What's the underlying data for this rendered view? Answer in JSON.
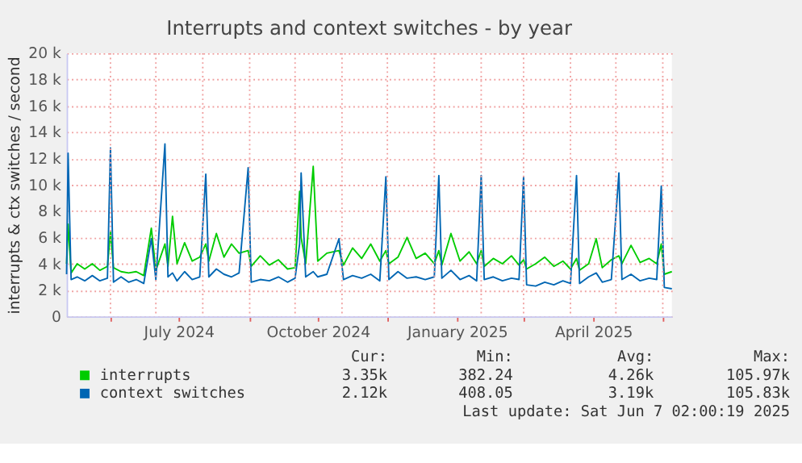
{
  "chart_data": {
    "type": "line",
    "title": "Interrupts and context switches - by year",
    "ylabel": "interrupts & ctx switches / second",
    "x": [
      "2024-05-03",
      "2024-05-04",
      "2024-05-06",
      "2024-05-10",
      "2024-05-15",
      "2024-05-20",
      "2024-05-25",
      "2024-05-30",
      "2024-06-01",
      "2024-06-03",
      "2024-06-08",
      "2024-06-13",
      "2024-06-18",
      "2024-06-23",
      "2024-06-28",
      "2024-07-01",
      "2024-07-07",
      "2024-07-09",
      "2024-07-12",
      "2024-07-15",
      "2024-07-20",
      "2024-07-25",
      "2024-07-30",
      "2024-08-03",
      "2024-08-05",
      "2024-08-10",
      "2024-08-15",
      "2024-08-20",
      "2024-08-25",
      "2024-08-31",
      "2024-09-02",
      "2024-09-08",
      "2024-09-14",
      "2024-09-20",
      "2024-09-26",
      "2024-10-01",
      "2024-10-04",
      "2024-10-05",
      "2024-10-08",
      "2024-10-13",
      "2024-10-16",
      "2024-10-22",
      "2024-10-30",
      "2024-11-02",
      "2024-11-08",
      "2024-11-14",
      "2024-11-20",
      "2024-11-26",
      "2024-11-30",
      "2024-12-02",
      "2024-12-08",
      "2024-12-14",
      "2024-12-20",
      "2024-12-26",
      "2025-01-01",
      "2025-01-04",
      "2025-01-06",
      "2025-01-12",
      "2025-01-18",
      "2025-01-24",
      "2025-01-29",
      "2025-02-01",
      "2025-02-03",
      "2025-02-09",
      "2025-02-15",
      "2025-02-21",
      "2025-02-26",
      "2025-03-01",
      "2025-03-03",
      "2025-03-09",
      "2025-03-15",
      "2025-03-21",
      "2025-03-27",
      "2025-04-01",
      "2025-04-05",
      "2025-04-07",
      "2025-04-13",
      "2025-04-18",
      "2025-04-22",
      "2025-04-28",
      "2025-05-03",
      "2025-05-05",
      "2025-05-11",
      "2025-05-17",
      "2025-05-23",
      "2025-05-28",
      "2025-05-31",
      "2025-06-02",
      "2025-06-07"
    ],
    "series": [
      {
        "name": "interrupts",
        "color": "#00cc00",
        "values": [
          4000,
          7000,
          3300,
          4000,
          3600,
          4000,
          3500,
          3800,
          6400,
          3700,
          3400,
          3300,
          3400,
          3100,
          6700,
          3500,
          5500,
          3800,
          7600,
          4000,
          5600,
          4200,
          4500,
          5500,
          4200,
          6300,
          4500,
          5500,
          4800,
          5000,
          3800,
          4600,
          3900,
          4300,
          3600,
          3700,
          9500,
          6000,
          4000,
          11400,
          4200,
          4800,
          5000,
          3900,
          5200,
          4400,
          5500,
          4200,
          5000,
          4000,
          4500,
          6000,
          4400,
          4800,
          4000,
          5000,
          3900,
          6300,
          4200,
          4900,
          4000,
          5000,
          3800,
          4400,
          4000,
          4600,
          3900,
          4300,
          3600,
          4000,
          4500,
          3800,
          4200,
          3600,
          4400,
          3500,
          4000,
          5900,
          3700,
          4300,
          4600,
          4000,
          5400,
          4100,
          4400,
          4000,
          5500,
          3200,
          3400
        ]
      },
      {
        "name": "context switches",
        "color": "#0066b3",
        "values": [
          3200,
          12400,
          2800,
          3000,
          2700,
          3100,
          2700,
          2900,
          12800,
          2600,
          3000,
          2600,
          2800,
          2500,
          5900,
          2800,
          13100,
          3000,
          3300,
          2700,
          3400,
          2800,
          3000,
          10800,
          3000,
          3600,
          3200,
          3000,
          3300,
          11300,
          2600,
          2800,
          2700,
          3000,
          2600,
          2900,
          5500,
          10900,
          3000,
          3400,
          3000,
          3200,
          5900,
          2800,
          3100,
          2900,
          3200,
          2700,
          10600,
          2800,
          3400,
          2900,
          3000,
          2800,
          3000,
          10700,
          2900,
          3500,
          2800,
          3100,
          2700,
          10700,
          2800,
          3000,
          2700,
          2900,
          2800,
          10600,
          2400,
          2300,
          2600,
          2400,
          2700,
          2500,
          10700,
          2500,
          3000,
          3300,
          2600,
          2800,
          10900,
          2800,
          3200,
          2700,
          2900,
          2800,
          9900,
          2200,
          2100
        ]
      }
    ],
    "xlim": [
      "2024-05-03",
      "2025-06-07"
    ],
    "xticks": [
      {
        "value": "2024-06-01",
        "label": null
      },
      {
        "value": "2024-07-01",
        "label": null
      },
      {
        "value": "2024-07-16",
        "label": "July 2024"
      },
      {
        "value": "2024-08-01",
        "label": null
      },
      {
        "value": "2024-09-01",
        "label": null
      },
      {
        "value": "2024-10-01",
        "label": null
      },
      {
        "value": "2024-10-16",
        "label": "October 2024"
      },
      {
        "value": "2024-11-01",
        "label": null
      },
      {
        "value": "2024-12-01",
        "label": null
      },
      {
        "value": "2025-01-01",
        "label": null
      },
      {
        "value": "2025-01-16",
        "label": "January 2025"
      },
      {
        "value": "2025-02-01",
        "label": null
      },
      {
        "value": "2025-03-01",
        "label": null
      },
      {
        "value": "2025-04-01",
        "label": null
      },
      {
        "value": "2025-04-16",
        "label": "April 2025"
      },
      {
        "value": "2025-05-01",
        "label": null
      },
      {
        "value": "2025-06-01",
        "label": null
      }
    ],
    "ylim": [
      0,
      20000
    ],
    "yticks": [
      {
        "value": 0,
        "label": "0"
      },
      {
        "value": 2000,
        "label": "2 k"
      },
      {
        "value": 4000,
        "label": "4 k"
      },
      {
        "value": 6000,
        "label": "6 k"
      },
      {
        "value": 8000,
        "label": "8 k"
      },
      {
        "value": 10000,
        "label": "10 k"
      },
      {
        "value": 12000,
        "label": "12 k"
      },
      {
        "value": 14000,
        "label": "14 k"
      },
      {
        "value": 16000,
        "label": "16 k"
      },
      {
        "value": 18000,
        "label": "18 k"
      },
      {
        "value": 20000,
        "label": "20 k"
      }
    ],
    "grid": true,
    "legend": "bottom",
    "marker": "none",
    "line_style": "solid",
    "annotations": [
      "Cur:",
      "Min:",
      "Avg:",
      "Max:",
      "3.35k",
      "382.24",
      "4.26k",
      "105.97k",
      "2.12k",
      "408.05",
      "3.19k",
      "105.83k",
      "Last update: Sat Jun  7 02:00:19 2025"
    ]
  }
}
